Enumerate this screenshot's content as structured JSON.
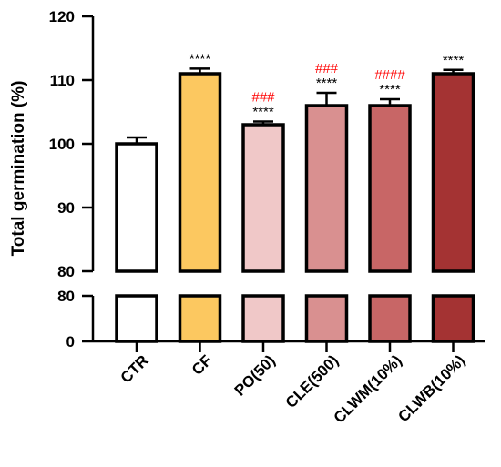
{
  "chart_data": {
    "type": "bar",
    "ylabel": "Total germination (%)",
    "categories": [
      "CTR",
      "CF",
      "PO(50)",
      "CLE(500)",
      "CLWM(10%)",
      "CLWB(10%)"
    ],
    "values": [
      100,
      111,
      103,
      106,
      106,
      111
    ],
    "errors": [
      1.0,
      0.8,
      0.5,
      2.0,
      1.0,
      0.6
    ],
    "bar_colors": [
      "#ffffff",
      "#fcc860",
      "#f0c8c8",
      "#d99090",
      "#c86666",
      "#a43333"
    ],
    "significance_vs_ctr": [
      "",
      "****",
      "****",
      "****",
      "****",
      "****"
    ],
    "significance_vs_cf": [
      "",
      "",
      "###",
      "###",
      "####",
      ""
    ],
    "significance_colors": {
      "vs_ctr": "#000000",
      "vs_cf": "#ff0000"
    },
    "y_axis": {
      "broken": true,
      "upper_segment": {
        "range": [
          80,
          120
        ],
        "ticks": [
          80,
          90,
          100,
          110,
          120
        ]
      },
      "lower_segment": {
        "range": [
          0,
          80
        ],
        "ticks": [
          0,
          80
        ]
      }
    },
    "grid": false,
    "legend": "none"
  }
}
